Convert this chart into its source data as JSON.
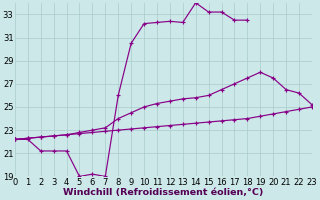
{
  "background_color": "#cce8e8",
  "grid_color": "#aacccc",
  "line_color": "#880088",
  "xlabel": "Windchill (Refroidissement éolien,°C)",
  "xlabel_fontsize": 6.8,
  "tick_fontsize": 6.0,
  "xlim": [
    0,
    23
  ],
  "ylim": [
    19,
    34
  ],
  "yticks": [
    19,
    21,
    23,
    25,
    27,
    29,
    31,
    33
  ],
  "xticks": [
    0,
    1,
    2,
    3,
    4,
    5,
    6,
    7,
    8,
    9,
    10,
    11,
    12,
    13,
    14,
    15,
    16,
    17,
    18,
    19,
    20,
    21,
    22,
    23
  ],
  "line1_x": [
    0,
    1,
    2,
    3,
    4,
    5,
    6,
    7,
    8,
    9,
    10,
    11,
    12,
    13,
    14,
    15,
    16,
    17,
    18
  ],
  "line1_y": [
    22.2,
    22.2,
    21.2,
    21.2,
    21.2,
    19.0,
    19.2,
    19.0,
    26.0,
    30.5,
    32.2,
    32.3,
    32.4,
    32.3,
    34.0,
    33.2,
    33.2,
    32.5,
    32.5
  ],
  "line2_x": [
    0,
    1,
    2,
    3,
    4,
    5,
    6,
    7,
    8,
    9,
    10,
    11,
    12,
    13,
    14,
    15,
    16,
    17,
    18,
    19,
    20,
    21,
    22,
    23
  ],
  "line2_y": [
    22.2,
    22.3,
    22.4,
    22.5,
    22.6,
    22.8,
    23.0,
    23.2,
    24.0,
    24.5,
    25.0,
    25.3,
    25.5,
    25.7,
    25.8,
    26.0,
    26.5,
    27.0,
    27.5,
    28.0,
    27.5,
    26.5,
    26.2,
    25.2
  ],
  "line3_x": [
    0,
    1,
    2,
    3,
    4,
    5,
    6,
    7,
    8,
    9,
    10,
    11,
    12,
    13,
    14,
    15,
    16,
    17,
    18,
    19,
    20,
    21,
    22,
    23
  ],
  "line3_y": [
    22.2,
    22.3,
    22.4,
    22.5,
    22.6,
    22.7,
    22.8,
    22.9,
    23.0,
    23.1,
    23.2,
    23.3,
    23.4,
    23.5,
    23.6,
    23.7,
    23.8,
    23.9,
    24.0,
    24.2,
    24.4,
    24.6,
    24.8,
    25.0
  ]
}
